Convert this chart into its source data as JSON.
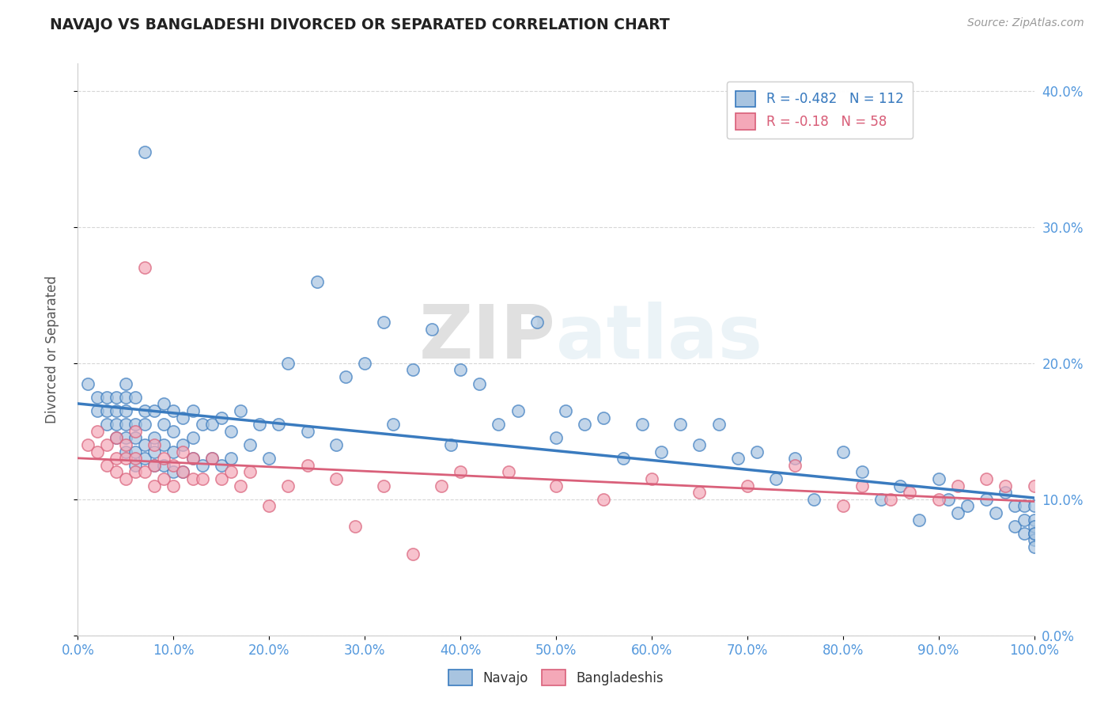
{
  "title": "NAVAJO VS BANGLADESHI DIVORCED OR SEPARATED CORRELATION CHART",
  "source_text": "Source: ZipAtlas.com",
  "ylabel": "Divorced or Separated",
  "navajo_R": -0.482,
  "navajo_N": 112,
  "bangladeshi_R": -0.18,
  "bangladeshi_N": 58,
  "xlim": [
    0.0,
    1.0
  ],
  "ylim": [
    0.0,
    0.42
  ],
  "xtick_vals": [
    0.0,
    0.1,
    0.2,
    0.3,
    0.4,
    0.5,
    0.6,
    0.7,
    0.8,
    0.9,
    1.0
  ],
  "ytick_vals": [
    0.0,
    0.1,
    0.2,
    0.3,
    0.4
  ],
  "navajo_color": "#a8c4e0",
  "bangladeshi_color": "#f4a8b8",
  "navajo_line_color": "#3a7bbf",
  "bangladeshi_line_color": "#d9607a",
  "background_color": "#ffffff",
  "title_color": "#222222",
  "axis_label_color": "#555555",
  "tick_label_color": "#5599dd",
  "grid_color": "#cccccc",
  "watermark_zip": "ZIP",
  "watermark_atlas": "atlas",
  "navajo_x": [
    0.01,
    0.02,
    0.02,
    0.03,
    0.03,
    0.03,
    0.04,
    0.04,
    0.04,
    0.04,
    0.05,
    0.05,
    0.05,
    0.05,
    0.05,
    0.05,
    0.06,
    0.06,
    0.06,
    0.06,
    0.06,
    0.07,
    0.07,
    0.07,
    0.07,
    0.07,
    0.08,
    0.08,
    0.08,
    0.08,
    0.09,
    0.09,
    0.09,
    0.09,
    0.1,
    0.1,
    0.1,
    0.1,
    0.11,
    0.11,
    0.11,
    0.12,
    0.12,
    0.12,
    0.13,
    0.13,
    0.14,
    0.14,
    0.15,
    0.15,
    0.16,
    0.16,
    0.17,
    0.18,
    0.19,
    0.2,
    0.21,
    0.22,
    0.24,
    0.25,
    0.27,
    0.28,
    0.3,
    0.32,
    0.33,
    0.35,
    0.37,
    0.39,
    0.4,
    0.42,
    0.44,
    0.46,
    0.48,
    0.5,
    0.51,
    0.53,
    0.55,
    0.57,
    0.59,
    0.61,
    0.63,
    0.65,
    0.67,
    0.69,
    0.71,
    0.73,
    0.75,
    0.77,
    0.8,
    0.82,
    0.84,
    0.86,
    0.88,
    0.9,
    0.91,
    0.92,
    0.93,
    0.95,
    0.96,
    0.97,
    0.98,
    0.98,
    0.99,
    0.99,
    0.99,
    1.0,
    1.0,
    1.0,
    1.0,
    1.0,
    1.0,
    1.0
  ],
  "navajo_y": [
    0.185,
    0.175,
    0.165,
    0.155,
    0.165,
    0.175,
    0.145,
    0.155,
    0.165,
    0.175,
    0.135,
    0.145,
    0.155,
    0.165,
    0.175,
    0.185,
    0.125,
    0.135,
    0.145,
    0.155,
    0.175,
    0.13,
    0.14,
    0.155,
    0.165,
    0.355,
    0.125,
    0.135,
    0.145,
    0.165,
    0.125,
    0.14,
    0.155,
    0.17,
    0.12,
    0.135,
    0.15,
    0.165,
    0.12,
    0.14,
    0.16,
    0.13,
    0.145,
    0.165,
    0.125,
    0.155,
    0.13,
    0.155,
    0.125,
    0.16,
    0.13,
    0.15,
    0.165,
    0.14,
    0.155,
    0.13,
    0.155,
    0.2,
    0.15,
    0.26,
    0.14,
    0.19,
    0.2,
    0.23,
    0.155,
    0.195,
    0.225,
    0.14,
    0.195,
    0.185,
    0.155,
    0.165,
    0.23,
    0.145,
    0.165,
    0.155,
    0.16,
    0.13,
    0.155,
    0.135,
    0.155,
    0.14,
    0.155,
    0.13,
    0.135,
    0.115,
    0.13,
    0.1,
    0.135,
    0.12,
    0.1,
    0.11,
    0.085,
    0.115,
    0.1,
    0.09,
    0.095,
    0.1,
    0.09,
    0.105,
    0.095,
    0.08,
    0.095,
    0.085,
    0.075,
    0.095,
    0.075,
    0.085,
    0.07,
    0.08,
    0.065,
    0.075
  ],
  "bangladeshi_x": [
    0.01,
    0.02,
    0.02,
    0.03,
    0.03,
    0.04,
    0.04,
    0.04,
    0.05,
    0.05,
    0.05,
    0.06,
    0.06,
    0.06,
    0.07,
    0.07,
    0.08,
    0.08,
    0.08,
    0.09,
    0.09,
    0.1,
    0.1,
    0.11,
    0.11,
    0.12,
    0.12,
    0.13,
    0.14,
    0.15,
    0.16,
    0.17,
    0.18,
    0.2,
    0.22,
    0.24,
    0.27,
    0.29,
    0.32,
    0.35,
    0.38,
    0.4,
    0.45,
    0.5,
    0.55,
    0.6,
    0.65,
    0.7,
    0.75,
    0.8,
    0.82,
    0.85,
    0.87,
    0.9,
    0.92,
    0.95,
    0.97,
    1.0
  ],
  "bangladeshi_y": [
    0.14,
    0.135,
    0.15,
    0.125,
    0.14,
    0.12,
    0.13,
    0.145,
    0.115,
    0.13,
    0.14,
    0.12,
    0.13,
    0.15,
    0.12,
    0.27,
    0.11,
    0.125,
    0.14,
    0.115,
    0.13,
    0.11,
    0.125,
    0.12,
    0.135,
    0.115,
    0.13,
    0.115,
    0.13,
    0.115,
    0.12,
    0.11,
    0.12,
    0.095,
    0.11,
    0.125,
    0.115,
    0.08,
    0.11,
    0.06,
    0.11,
    0.12,
    0.12,
    0.11,
    0.1,
    0.115,
    0.105,
    0.11,
    0.125,
    0.095,
    0.11,
    0.1,
    0.105,
    0.1,
    0.11,
    0.115,
    0.11,
    0.11
  ]
}
